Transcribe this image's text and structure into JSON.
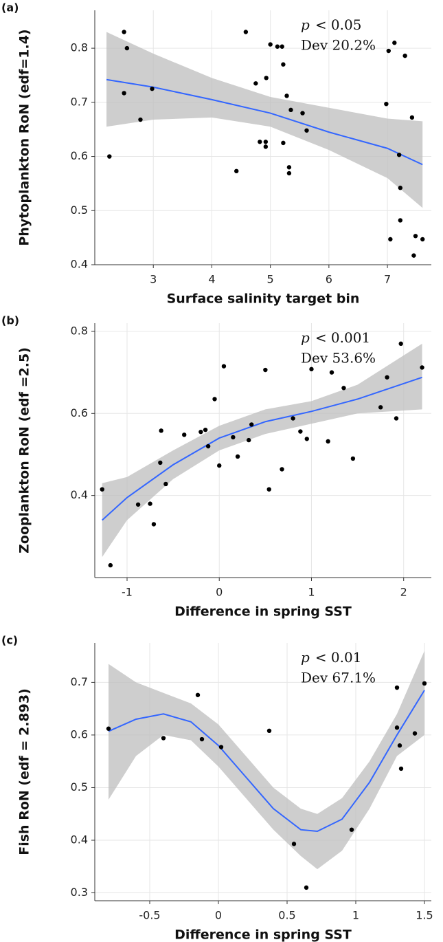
{
  "chart_data": [
    {
      "type": "scatter",
      "panel_label": "(a)",
      "y_label": "Phytoplankton RoN (edf=1.4)",
      "x_label": "Surface salinity target bin",
      "annotation": {
        "p": "p",
        "p_value": "< 0.05",
        "dev": "Dev 20.2%"
      },
      "x": [
        2.25,
        2.5,
        2.55,
        2.5,
        2.78,
        2.98,
        4.42,
        4.58,
        4.75,
        4.82,
        4.92,
        4.92,
        4.93,
        5.0,
        5.12,
        5.2,
        5.22,
        5.22,
        5.28,
        5.32,
        5.32,
        5.35,
        5.55,
        5.62,
        6.98,
        7.02,
        7.05,
        7.12,
        7.2,
        7.22,
        7.22,
        7.3,
        7.42,
        7.45,
        7.48,
        7.6
      ],
      "y": [
        0.6,
        0.83,
        0.8,
        0.717,
        0.668,
        0.725,
        0.573,
        0.83,
        0.735,
        0.627,
        0.618,
        0.627,
        0.745,
        0.807,
        0.803,
        0.803,
        0.77,
        0.625,
        0.712,
        0.58,
        0.569,
        0.686,
        0.68,
        0.648,
        0.697,
        0.795,
        0.447,
        0.81,
        0.603,
        0.542,
        0.482,
        0.786,
        0.672,
        0.417,
        0.453,
        0.447
      ],
      "smooth": {
        "x": [
          2.2,
          3,
          4,
          5,
          6,
          7,
          7.6
        ],
        "y": [
          0.742,
          0.728,
          0.705,
          0.68,
          0.645,
          0.615,
          0.585
        ],
        "upper": [
          0.83,
          0.79,
          0.745,
          0.71,
          0.69,
          0.67,
          0.665
        ],
        "lower": [
          0.655,
          0.668,
          0.672,
          0.655,
          0.612,
          0.56,
          0.505
        ]
      },
      "xlim": [
        2.0,
        7.75
      ],
      "ylim": [
        0.4,
        0.87
      ],
      "xticks": [
        3,
        4,
        5,
        6,
        7
      ],
      "yticks": [
        0.4,
        0.5,
        0.6,
        0.7,
        0.8
      ],
      "grid": true,
      "point_color": "#000000",
      "line_color": "#3366ff",
      "band_color": "#bdbdbd"
    },
    {
      "type": "scatter",
      "panel_label": "(b)",
      "y_label": "Zooplankton RoN (edf =2.5)",
      "x_label": "Difference in spring SST",
      "annotation": {
        "p": "p",
        "p_value": "< 0.001",
        "dev": "Dev 53.6%"
      },
      "x": [
        -1.27,
        -1.18,
        -0.88,
        -0.75,
        -0.71,
        -0.64,
        -0.63,
        -0.58,
        -0.38,
        -0.2,
        -0.15,
        -0.12,
        -0.05,
        0,
        0.05,
        0.15,
        0.2,
        0.32,
        0.35,
        0.5,
        0.54,
        0.68,
        0.8,
        0.88,
        0.95,
        1.0,
        1.18,
        1.22,
        1.35,
        1.45,
        1.75,
        1.82,
        1.92,
        1.97,
        2.2
      ],
      "y": [
        0.415,
        0.23,
        0.378,
        0.38,
        0.33,
        0.48,
        0.558,
        0.428,
        0.548,
        0.555,
        0.56,
        0.52,
        0.635,
        0.473,
        0.715,
        0.542,
        0.495,
        0.535,
        0.573,
        0.706,
        0.415,
        0.464,
        0.588,
        0.556,
        0.538,
        0.708,
        0.532,
        0.7,
        0.662,
        0.49,
        0.615,
        0.688,
        0.588,
        0.77,
        0.712
      ],
      "smooth": {
        "x": [
          -1.27,
          -1,
          -0.5,
          0,
          0.5,
          1,
          1.5,
          2.2
        ],
        "y": [
          0.34,
          0.395,
          0.475,
          0.54,
          0.58,
          0.605,
          0.635,
          0.688
        ],
        "upper": [
          0.43,
          0.445,
          0.51,
          0.57,
          0.61,
          0.63,
          0.67,
          0.77
        ],
        "lower": [
          0.25,
          0.34,
          0.44,
          0.51,
          0.55,
          0.575,
          0.6,
          0.61
        ]
      },
      "xlim": [
        -1.35,
        2.3
      ],
      "ylim": [
        0.2,
        0.82
      ],
      "xticks": [
        -1,
        0,
        1,
        2
      ],
      "yticks": [
        0.4,
        0.6,
        0.8
      ],
      "grid": true,
      "point_color": "#000000",
      "line_color": "#3366ff",
      "band_color": "#bdbdbd"
    },
    {
      "type": "scatter",
      "panel_label": "(c)",
      "y_label": "Fish RoN (edf = 2.893)",
      "x_label": "Difference in spring SST",
      "annotation": {
        "p": "p",
        "p_value": "< 0.01",
        "dev": "Dev 67.1%"
      },
      "x": [
        -0.8,
        -0.4,
        -0.15,
        -0.12,
        0.02,
        0.37,
        0.55,
        0.64,
        0.97,
        1.3,
        1.3,
        1.32,
        1.33,
        1.43,
        1.5
      ],
      "y": [
        0.612,
        0.594,
        0.676,
        0.592,
        0.577,
        0.608,
        0.393,
        0.31,
        0.42,
        0.69,
        0.614,
        0.58,
        0.536,
        0.603,
        0.698
      ],
      "smooth": {
        "x": [
          -0.8,
          -0.6,
          -0.4,
          -0.2,
          0,
          0.2,
          0.4,
          0.6,
          0.72,
          0.9,
          1.1,
          1.3,
          1.5
        ],
        "y": [
          0.607,
          0.63,
          0.64,
          0.625,
          0.58,
          0.52,
          0.46,
          0.42,
          0.417,
          0.44,
          0.51,
          0.6,
          0.685
        ],
        "upper": [
          0.735,
          0.7,
          0.68,
          0.66,
          0.62,
          0.56,
          0.5,
          0.46,
          0.45,
          0.48,
          0.55,
          0.64,
          0.76
        ],
        "lower": [
          0.477,
          0.56,
          0.6,
          0.59,
          0.54,
          0.48,
          0.42,
          0.37,
          0.345,
          0.38,
          0.46,
          0.56,
          0.6
        ]
      },
      "xlim": [
        -0.9,
        1.55
      ],
      "ylim": [
        0.285,
        0.775
      ],
      "xticks": [
        -0.5,
        0,
        0.5,
        1,
        1.5
      ],
      "yticks": [
        0.3,
        0.4,
        0.5,
        0.6,
        0.7
      ],
      "grid": true,
      "point_color": "#000000",
      "line_color": "#3366ff",
      "band_color": "#bdbdbd"
    }
  ]
}
